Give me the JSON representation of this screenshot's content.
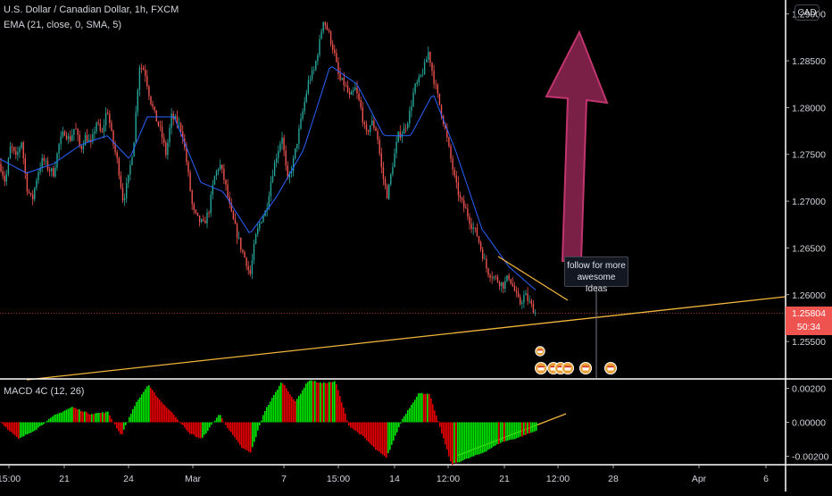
{
  "header": {
    "symbol": "U.S. Dollar / Canadian Dollar, 1h, FXCM",
    "ema": "EMA (21, close, 0, SMA, 5)",
    "macd": "MACD 4C (12, 26)"
  },
  "currency_button": "CAD",
  "annotation": {
    "line1": "follow for more",
    "line2": "awesome Ideas"
  },
  "last_price": {
    "value": "1.25804",
    "countdown": "50:34"
  },
  "colors": {
    "up": "#26a69a",
    "down": "#ef5350",
    "ema": "#2962ff",
    "trend": "#f0b43c",
    "arrow_fill": "#7a1f45",
    "arrow_stroke": "#c0356e",
    "macd_up": "#00e600",
    "macd_down": "#e60000"
  },
  "chart_data": [
    {
      "type": "candlestick",
      "title": "U.S. Dollar / Canadian Dollar, 1h, FXCM",
      "series": [
        {
          "name": "EMA (21, close, 0, SMA, 5)"
        }
      ],
      "ylim": [
        1.251,
        1.2915
      ],
      "yticks": [
        "1.29000",
        "1.28500",
        "1.28000",
        "1.27500",
        "1.27000",
        "1.26500",
        "1.26000",
        "1.25500"
      ],
      "xticks": [
        "15:00",
        "21",
        "24",
        "Mar",
        "7",
        "15:00",
        "14",
        "12:00",
        "21",
        "12:00",
        "28",
        "Apr",
        "6"
      ],
      "close_path": [
        [
          0,
          1.274
        ],
        [
          6,
          1.272
        ],
        [
          12,
          1.276
        ],
        [
          18,
          1.2745
        ],
        [
          24,
          1.2765
        ],
        [
          30,
          1.2715
        ],
        [
          36,
          1.27
        ],
        [
          42,
          1.273
        ],
        [
          48,
          1.2745
        ],
        [
          54,
          1.2735
        ],
        [
          60,
          1.273
        ],
        [
          66,
          1.276
        ],
        [
          72,
          1.2775
        ],
        [
          78,
          1.2765
        ],
        [
          84,
          1.278
        ],
        [
          90,
          1.2755
        ],
        [
          96,
          1.277
        ],
        [
          102,
          1.276
        ],
        [
          108,
          1.2785
        ],
        [
          114,
          1.277
        ],
        [
          120,
          1.28
        ],
        [
          126,
          1.2765
        ],
        [
          132,
          1.274
        ],
        [
          138,
          1.27
        ],
        [
          144,
          1.2725
        ],
        [
          150,
          1.2765
        ],
        [
          156,
          1.2845
        ],
        [
          162,
          1.284
        ],
        [
          168,
          1.281
        ],
        [
          174,
          1.279
        ],
        [
          180,
          1.2775
        ],
        [
          186,
          1.275
        ],
        [
          192,
          1.279
        ],
        [
          198,
          1.2785
        ],
        [
          204,
          1.2775
        ],
        [
          210,
          1.2735
        ],
        [
          216,
          1.269
        ],
        [
          222,
          1.268
        ],
        [
          228,
          1.2675
        ],
        [
          234,
          1.269
        ],
        [
          240,
          1.2725
        ],
        [
          246,
          1.274
        ],
        [
          252,
          1.272
        ],
        [
          258,
          1.269
        ],
        [
          264,
          1.267
        ],
        [
          270,
          1.265
        ],
        [
          276,
          1.2635
        ],
        [
          280,
          1.262
        ],
        [
          286,
          1.266
        ],
        [
          292,
          1.268
        ],
        [
          298,
          1.269
        ],
        [
          304,
          1.2725
        ],
        [
          310,
          1.275
        ],
        [
          316,
          1.277
        ],
        [
          322,
          1.272
        ],
        [
          328,
          1.274
        ],
        [
          334,
          1.277
        ],
        [
          340,
          1.28
        ],
        [
          346,
          1.283
        ],
        [
          352,
          1.284
        ],
        [
          358,
          1.287
        ],
        [
          362,
          1.2895
        ],
        [
          368,
          1.288
        ],
        [
          374,
          1.286
        ],
        [
          380,
          1.283
        ],
        [
          386,
          1.2825
        ],
        [
          392,
          1.281
        ],
        [
          398,
          1.282
        ],
        [
          404,
          1.28
        ],
        [
          410,
          1.277
        ],
        [
          416,
          1.2785
        ],
        [
          422,
          1.2775
        ],
        [
          428,
          1.273
        ],
        [
          434,
          1.2705
        ],
        [
          440,
          1.274
        ],
        [
          446,
          1.277
        ],
        [
          452,
          1.2775
        ],
        [
          458,
          1.279
        ],
        [
          464,
          1.282
        ],
        [
          470,
          1.283
        ],
        [
          476,
          1.2845
        ],
        [
          480,
          1.286
        ],
        [
          486,
          1.283
        ],
        [
          492,
          1.2805
        ],
        [
          498,
          1.278
        ],
        [
          504,
          1.275
        ],
        [
          510,
          1.272
        ],
        [
          516,
          1.27
        ],
        [
          522,
          1.269
        ],
        [
          528,
          1.2675
        ],
        [
          534,
          1.2665
        ],
        [
          540,
          1.2645
        ],
        [
          546,
          1.2625
        ],
        [
          552,
          1.262
        ],
        [
          558,
          1.2615
        ],
        [
          564,
          1.261
        ],
        [
          570,
          1.262
        ],
        [
          576,
          1.2605
        ],
        [
          582,
          1.259
        ],
        [
          588,
          1.26
        ],
        [
          594,
          1.259
        ],
        [
          600,
          1.258
        ]
      ],
      "ema_path": [
        [
          0,
          1.2745
        ],
        [
          30,
          1.273
        ],
        [
          60,
          1.274
        ],
        [
          90,
          1.276
        ],
        [
          120,
          1.277
        ],
        [
          145,
          1.2745
        ],
        [
          165,
          1.279
        ],
        [
          195,
          1.279
        ],
        [
          225,
          1.272
        ],
        [
          250,
          1.271
        ],
        [
          280,
          1.2665
        ],
        [
          310,
          1.2705
        ],
        [
          340,
          1.2755
        ],
        [
          370,
          1.2845
        ],
        [
          400,
          1.2825
        ],
        [
          430,
          1.277
        ],
        [
          460,
          1.277
        ],
        [
          485,
          1.2815
        ],
        [
          510,
          1.2755
        ],
        [
          540,
          1.267
        ],
        [
          570,
          1.263
        ],
        [
          600,
          1.2605
        ]
      ],
      "last_value": 1.25804
    },
    {
      "type": "bar",
      "title": "MACD 4C (12, 26)",
      "ylim": [
        -0.0025,
        0.0025
      ],
      "yticks": [
        "0.00200",
        "0.00000",
        "-0.00200"
      ],
      "path": [
        [
          0,
          0.0
        ],
        [
          20,
          -0.001
        ],
        [
          40,
          -0.0004
        ],
        [
          60,
          0.0004
        ],
        [
          80,
          0.0009
        ],
        [
          100,
          0.0005
        ],
        [
          120,
          0.0006
        ],
        [
          135,
          -0.0008
        ],
        [
          150,
          0.001
        ],
        [
          165,
          0.0022
        ],
        [
          180,
          0.0012
        ],
        [
          195,
          0.0004
        ],
        [
          210,
          -0.0006
        ],
        [
          225,
          -0.001
        ],
        [
          245,
          0.0005
        ],
        [
          255,
          -0.0004
        ],
        [
          270,
          -0.0015
        ],
        [
          280,
          -0.0018
        ],
        [
          295,
          0.0006
        ],
        [
          315,
          0.0024
        ],
        [
          330,
          0.0012
        ],
        [
          345,
          0.0025
        ],
        [
          360,
          0.0023
        ],
        [
          375,
          0.0024
        ],
        [
          390,
          -0.0002
        ],
        [
          405,
          -0.0008
        ],
        [
          420,
          -0.0016
        ],
        [
          432,
          -0.0021
        ],
        [
          450,
          0.0002
        ],
        [
          468,
          0.0017
        ],
        [
          480,
          0.0017
        ],
        [
          495,
          -0.0008
        ],
        [
          505,
          -0.0025
        ],
        [
          520,
          -0.0022
        ],
        [
          540,
          -0.0018
        ],
        [
          560,
          -0.0012
        ],
        [
          580,
          -0.0009
        ],
        [
          600,
          -0.0005
        ]
      ]
    }
  ]
}
